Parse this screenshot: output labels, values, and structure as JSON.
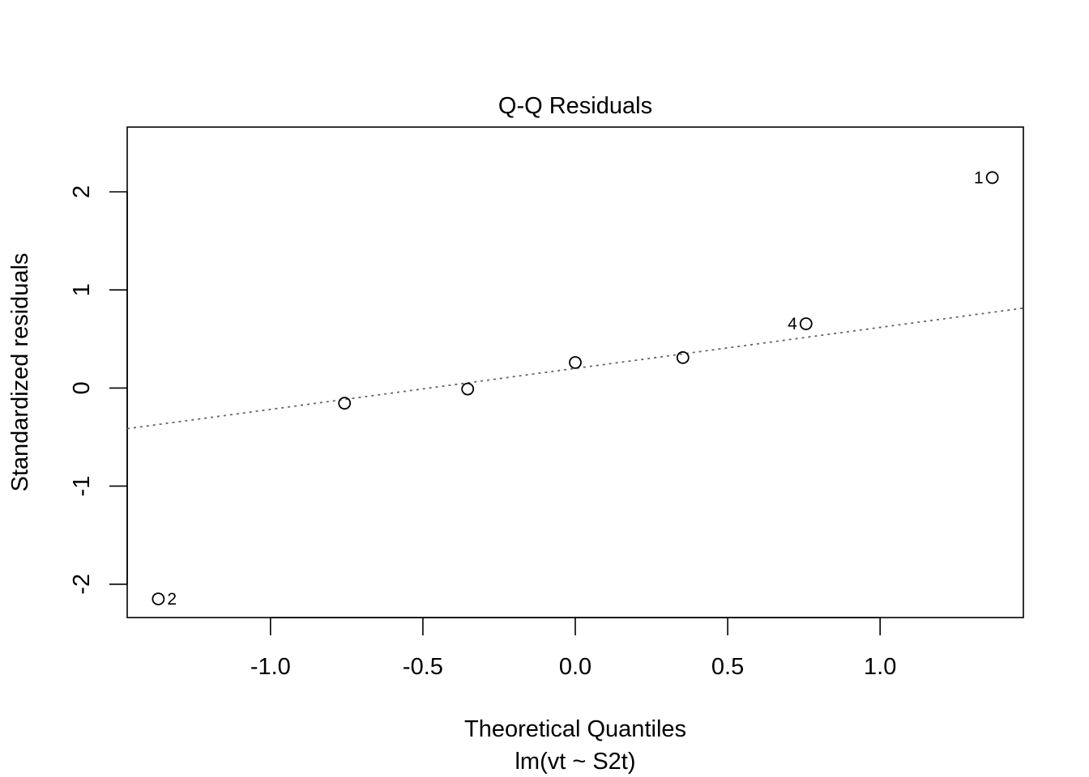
{
  "chart_data": {
    "type": "scatter",
    "title": "Q-Q Residuals",
    "xlabel": "Theoretical Quantiles",
    "xlabel_sub": "lm(vt ~ S2t)",
    "ylabel": "Standardized residuals",
    "xlim": [
      -1.47,
      1.47
    ],
    "ylim": [
      -2.34,
      2.66
    ],
    "x_ticks": [
      -1.0,
      -0.5,
      0.0,
      0.5,
      1.0
    ],
    "x_tick_labels": [
      "-1.0",
      "-0.5",
      "0.0",
      "0.5",
      "1.0"
    ],
    "y_ticks": [
      -2,
      -1,
      0,
      1,
      2
    ],
    "y_tick_labels": [
      "-2",
      "-1",
      "0",
      "1",
      "2"
    ],
    "grid": false,
    "legend": "none",
    "series": [
      {
        "marker": "open-circle",
        "x": [
          -1.368,
          -0.757,
          -0.353,
          0.0,
          0.353,
          0.757,
          1.368
        ],
        "y": [
          -2.15,
          -0.155,
          -0.01,
          0.26,
          0.31,
          0.655,
          2.145
        ],
        "labels": [
          "2",
          "",
          "",
          "",
          "",
          "4",
          "1"
        ]
      }
    ],
    "reference_line": {
      "style": "dotted",
      "color": "#666666",
      "intercept": 0.2,
      "slope": 0.418
    }
  }
}
